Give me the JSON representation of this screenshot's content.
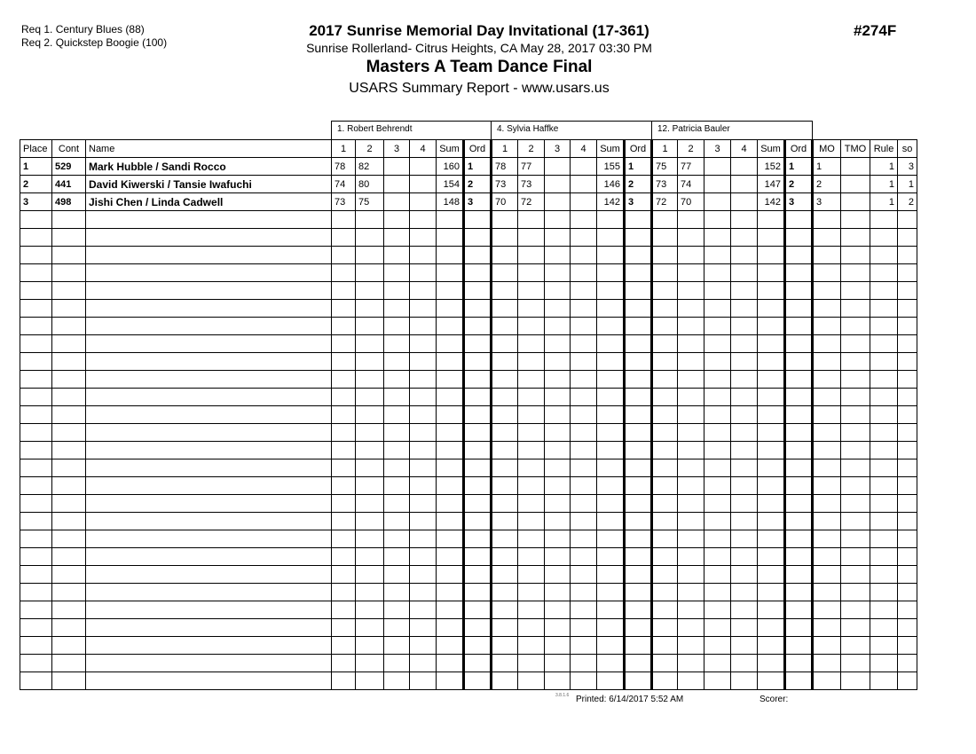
{
  "requirements": [
    "Req  1.  Century Blues (88)",
    "Req  2.  Quickstep Boogie (100)"
  ],
  "header": {
    "title": "2017 Sunrise Memorial Day Invitational (17-361)",
    "location": "Sunrise Rollerland- Citrus Heights, CA  May 28, 2017  03:30 PM",
    "event": "Masters A Team Dance Final",
    "report": "USARS Summary Report - www.usars.us",
    "event_number": "#274F"
  },
  "judges": [
    "1.  Robert Behrendt",
    "4.  Sylvia Haffke",
    "12.  Patricia Bauler"
  ],
  "columns": {
    "place": "Place",
    "cont": "Cont",
    "name": "Name",
    "scores": [
      "1",
      "2",
      "3",
      "4"
    ],
    "sum": "Sum",
    "ord": "Ord",
    "mo": "MO",
    "tmo": "TMO",
    "rule": "Rule",
    "so": "so"
  },
  "rows": [
    {
      "place": "1",
      "cont": "529",
      "name": "Mark Hubble / Sandi Rocco",
      "judges": [
        {
          "scores": [
            "78",
            "82",
            "",
            ""
          ],
          "sum": "160",
          "ord": "1"
        },
        {
          "scores": [
            "78",
            "77",
            "",
            ""
          ],
          "sum": "155",
          "ord": "1"
        },
        {
          "scores": [
            "75",
            "77",
            "",
            ""
          ],
          "sum": "152",
          "ord": "1"
        }
      ],
      "mo": "1",
      "tmo": "",
      "rule": "1",
      "so": "3"
    },
    {
      "place": "2",
      "cont": "441",
      "name": "David Kiwerski / Tansie Iwafuchi",
      "judges": [
        {
          "scores": [
            "74",
            "80",
            "",
            ""
          ],
          "sum": "154",
          "ord": "2"
        },
        {
          "scores": [
            "73",
            "73",
            "",
            ""
          ],
          "sum": "146",
          "ord": "2"
        },
        {
          "scores": [
            "73",
            "74",
            "",
            ""
          ],
          "sum": "147",
          "ord": "2"
        }
      ],
      "mo": "2",
      "tmo": "",
      "rule": "1",
      "so": "1"
    },
    {
      "place": "3",
      "cont": "498",
      "name": "Jishi Chen / Linda Cadwell",
      "judges": [
        {
          "scores": [
            "73",
            "75",
            "",
            ""
          ],
          "sum": "148",
          "ord": "3"
        },
        {
          "scores": [
            "70",
            "72",
            "",
            ""
          ],
          "sum": "142",
          "ord": "3"
        },
        {
          "scores": [
            "72",
            "70",
            "",
            ""
          ],
          "sum": "142",
          "ord": "3"
        }
      ],
      "mo": "3",
      "tmo": "",
      "rule": "1",
      "so": "2"
    }
  ],
  "total_rows": 30,
  "footer": {
    "version": "3.8.1.6",
    "printed": "Printed:  6/14/2017  5:52 AM",
    "scorer": "Scorer:"
  }
}
